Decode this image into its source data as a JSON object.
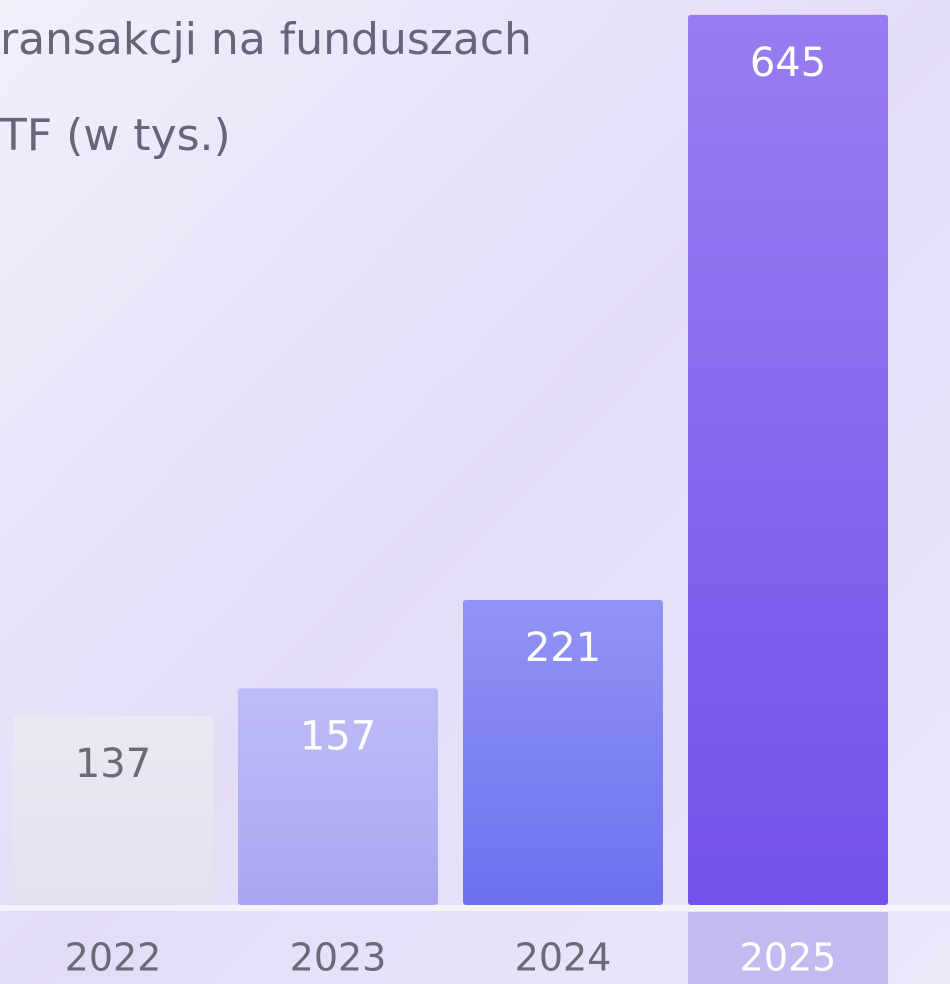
{
  "chart_data": {
    "type": "bar",
    "title_lines": [
      "ransakcji na funduszach",
      "TF (w tys.)"
    ],
    "categories": [
      "2022",
      "2023",
      "2024",
      "2025"
    ],
    "values": [
      137,
      157,
      221,
      645
    ],
    "colors": [
      "#e4e1ef",
      "#a9a6f2",
      "#6c70f0",
      "#7551ec"
    ],
    "label_colors": [
      "#6b6b78",
      "#ffffff",
      "#ffffff",
      "#ffffff"
    ],
    "highlight": "2025",
    "ylim": [
      0,
      650
    ]
  }
}
